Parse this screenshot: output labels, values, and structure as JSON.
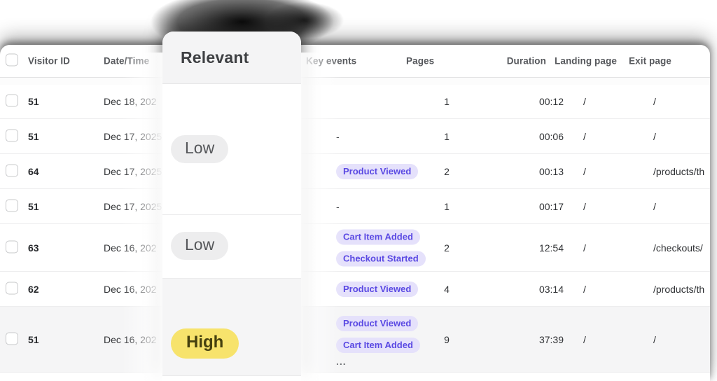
{
  "colors": {
    "key_event_badge_bg": "#e5e1fb",
    "key_event_badge_text": "#5a49e3",
    "relevance_high_bg": "#f7e36c",
    "relevance_high_text": "#45400f",
    "relevance_low_bg": "#ededee",
    "relevance_low_text": "#55575a",
    "row_highlight_bg": "#f5f5f6"
  },
  "overlay_card": {
    "title": "Relevant",
    "values": [
      {
        "label": "Low",
        "level": "low"
      },
      {
        "label": "Low",
        "level": "low"
      },
      {
        "label": "High",
        "level": "high"
      }
    ]
  },
  "table": {
    "header": {
      "visitor_id": "Visitor ID",
      "datetime": "Date/Time",
      "key_events": "Key events",
      "pages": "Pages",
      "duration": "Duration",
      "landing_page": "Landing page",
      "exit_page": "Exit page"
    },
    "rows": [
      {
        "visitor_id": "51",
        "date": "Dec 18, 202",
        "key_events": [],
        "key_events_text": "",
        "pages": "1",
        "duration": "00:12",
        "landing_page": "/",
        "exit_page": "/"
      },
      {
        "visitor_id": "51",
        "date": "Dec 17, 2025",
        "key_events": [],
        "key_events_text": "-",
        "pages": "1",
        "duration": "00:06",
        "landing_page": "/",
        "exit_page": "/"
      },
      {
        "visitor_id": "64",
        "date": "Dec 17, 2025",
        "key_events": [
          "Product Viewed"
        ],
        "key_events_text": "",
        "pages": "2",
        "duration": "00:13",
        "landing_page": "/",
        "exit_page": "/products/th"
      },
      {
        "visitor_id": "51",
        "date": "Dec 17, 2025",
        "key_events": [],
        "key_events_text": "-",
        "pages": "1",
        "duration": "00:17",
        "landing_page": "/",
        "exit_page": "/"
      },
      {
        "visitor_id": "63",
        "date": "Dec 16, 202",
        "key_events": [
          "Cart Item Added",
          "Checkout Started"
        ],
        "key_events_text": "",
        "pages": "2",
        "duration": "12:54",
        "landing_page": "/",
        "exit_page": "/checkouts/"
      },
      {
        "visitor_id": "62",
        "date": "Dec 16, 202",
        "key_events": [
          "Product Viewed"
        ],
        "key_events_text": "",
        "pages": "4",
        "duration": "03:14",
        "landing_page": "/",
        "exit_page": "/products/th"
      },
      {
        "visitor_id": "51",
        "date": "Dec 16, 202",
        "key_events": [
          "Product Viewed",
          "Cart Item Added"
        ],
        "key_events_text": "",
        "key_events_more": "...",
        "pages": "9",
        "duration": "37:39",
        "landing_page": "/",
        "exit_page": "/"
      }
    ]
  }
}
